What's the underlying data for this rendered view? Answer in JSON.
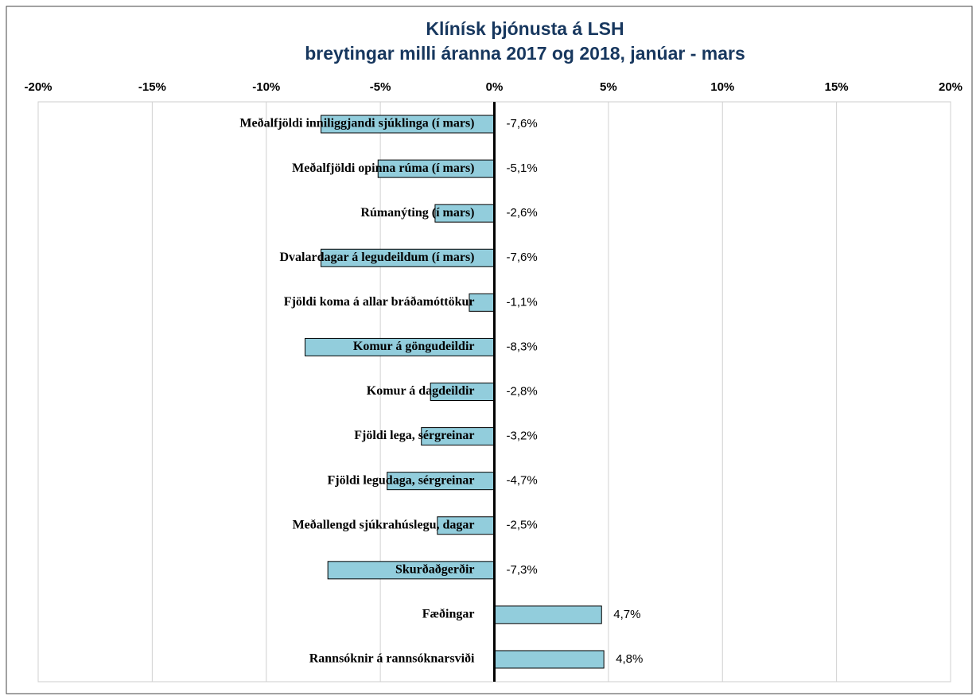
{
  "chart_data": {
    "type": "bar",
    "orientation": "horizontal",
    "title": "Klínísk þjónusta á LSH",
    "subtitle": "breytingar milli áranna 2017 og 2018,  janúar - mars",
    "categories": [
      "Meðalfjöldi inniliggjandi sjúklinga (í mars)",
      "Meðalfjöldi opinna rúma (í mars)",
      "Rúmanýting (í mars)",
      "Dvalardagar á legudeildum (í mars)",
      "Fjöldi koma á allar bráðamóttökur",
      "Komur á göngudeildir",
      "Komur á dagdeildir",
      "Fjöldi lega, sérgreinar",
      "Fjöldi legudaga, sérgreinar",
      "Meðallengd sjúkrahúslegu, dagar",
      "Skurðaðgerðir",
      "Fæðingar",
      "Rannsóknir á rannsóknarsviði"
    ],
    "values": [
      -7.6,
      -5.1,
      -2.6,
      -7.6,
      -1.1,
      -8.3,
      -2.8,
      -3.2,
      -4.7,
      -2.5,
      -7.3,
      4.7,
      4.8
    ],
    "value_labels": [
      "-7,6%",
      "-5,1%",
      "-2,6%",
      "-7,6%",
      "-1,1%",
      "-8,3%",
      "-2,8%",
      "-3,2%",
      "-4,7%",
      "-2,5%",
      "-7,3%",
      "4,7%",
      "4,8%"
    ],
    "color": "#92cddc",
    "xlim": [
      -20,
      20
    ],
    "xticks": [
      {
        "value": -20,
        "label": "-20%"
      },
      {
        "value": -15,
        "label": "-15%"
      },
      {
        "value": -10,
        "label": "-10%"
      },
      {
        "value": -5,
        "label": "-5%"
      },
      {
        "value": 0,
        "label": "0%"
      },
      {
        "value": 5,
        "label": "5%"
      },
      {
        "value": 10,
        "label": "10%"
      },
      {
        "value": 15,
        "label": "15%"
      },
      {
        "value": 20,
        "label": "20%"
      }
    ],
    "grid": true
  }
}
